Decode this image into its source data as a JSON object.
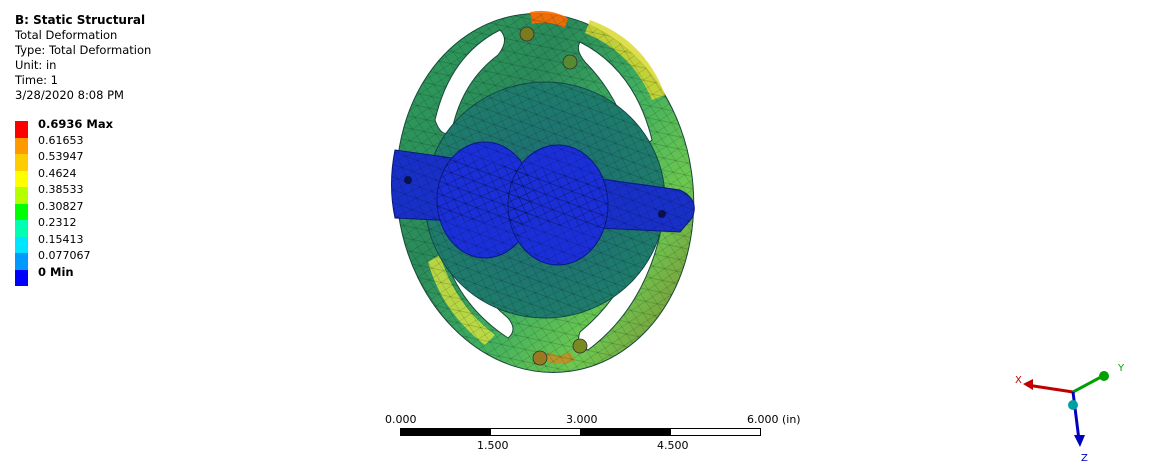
{
  "info": {
    "title": "B: Static Structural",
    "lines": [
      "Total Deformation",
      "Type: Total Deformation",
      "Unit: in",
      "Time: 1",
      "3/28/2020 8:08 PM"
    ]
  },
  "legend": {
    "entries": [
      {
        "label": "0.6936 Max",
        "color": "#ff0000",
        "bold": true
      },
      {
        "label": "0.61653",
        "color": "#ff9900",
        "bold": false
      },
      {
        "label": "0.53947",
        "color": "#ffcc00",
        "bold": false
      },
      {
        "label": "0.4624",
        "color": "#ffff00",
        "bold": false
      },
      {
        "label": "0.38533",
        "color": "#b5ff00",
        "bold": false
      },
      {
        "label": "0.30827",
        "color": "#00ff00",
        "bold": false
      },
      {
        "label": "0.2312",
        "color": "#00ffb0",
        "bold": false
      },
      {
        "label": "0.15413",
        "color": "#00e5ff",
        "bold": false
      },
      {
        "label": "0.077067",
        "color": "#0099ff",
        "bold": false
      },
      {
        "label": "0 Min",
        "color": "#0000ff",
        "bold": true
      }
    ]
  },
  "scale_bar": {
    "top_labels": [
      "0.000",
      "3.000",
      "6.000 (in)"
    ],
    "bottom_labels": [
      "1.500",
      "4.500"
    ]
  },
  "triad": {
    "x_label": "X",
    "y_label": "Y",
    "z_label": "Z",
    "x_color": "#c00000",
    "y_color": "#00a000",
    "z_color": "#0000c0"
  }
}
